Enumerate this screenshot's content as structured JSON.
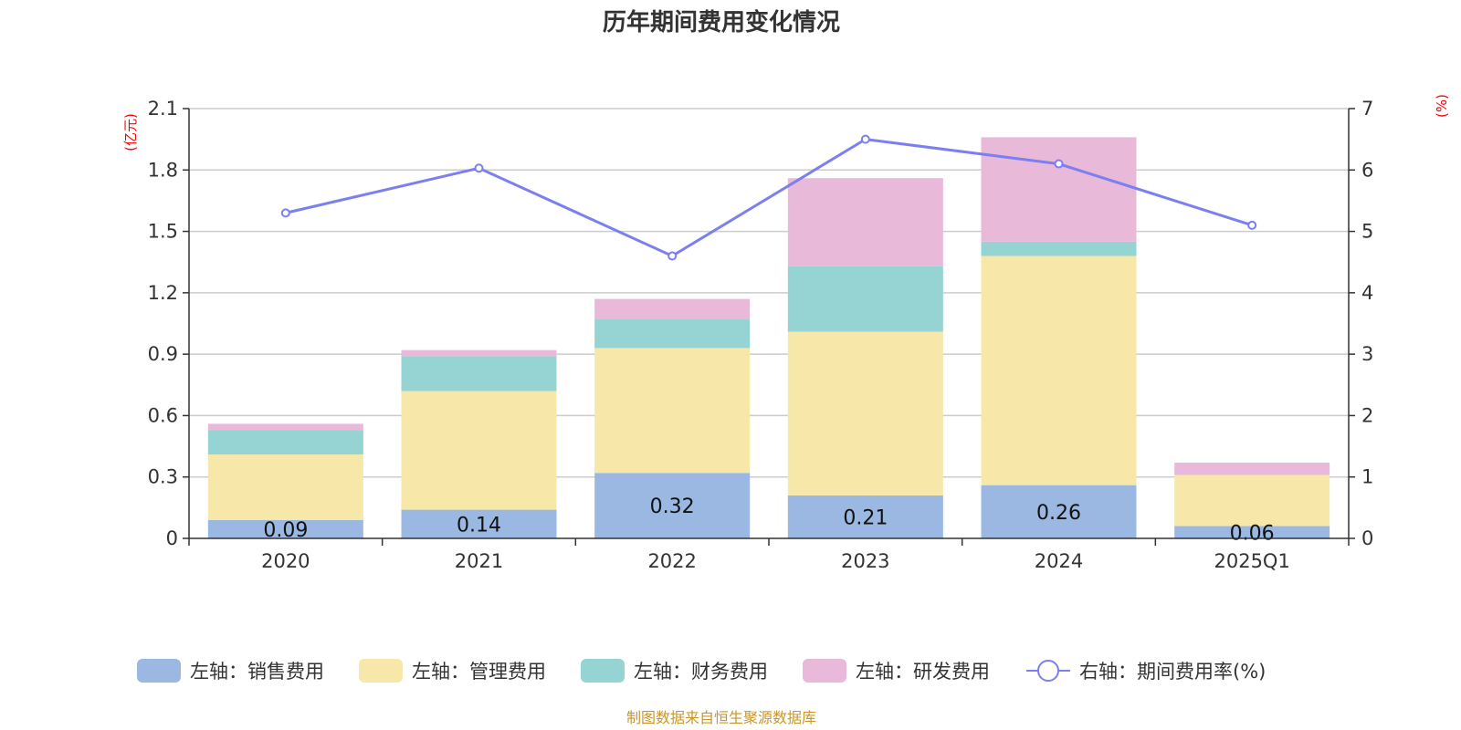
{
  "chart_data": {
    "type": "bar",
    "stacked": true,
    "title": "历年期间费用变化情况",
    "categories": [
      "2020",
      "2021",
      "2022",
      "2023",
      "2024",
      "2025Q1"
    ],
    "left_axis": {
      "unit": "(亿元)",
      "ylim": [
        0,
        2.1
      ],
      "ticks": [
        "0",
        "0.3",
        "0.6",
        "0.9",
        "1.2",
        "1.5",
        "1.8",
        "2.1"
      ]
    },
    "right_axis": {
      "unit": "(%)",
      "ylim": [
        0,
        7
      ],
      "ticks": [
        "0",
        "1",
        "2",
        "3",
        "4",
        "5",
        "6",
        "7"
      ]
    },
    "series": [
      {
        "name": "左轴：销售费用",
        "axis": "left",
        "kind": "bar",
        "color": "#9bb8e2",
        "values": [
          0.09,
          0.14,
          0.32,
          0.21,
          0.26,
          0.06
        ],
        "labels": [
          "0.09",
          "0.14",
          "0.32",
          "0.21",
          "0.26",
          "0.06"
        ]
      },
      {
        "name": "左轴：管理费用",
        "axis": "left",
        "kind": "bar",
        "color": "#f7e7a9",
        "values": [
          0.32,
          0.58,
          0.61,
          0.8,
          1.12,
          0.25
        ]
      },
      {
        "name": "左轴：财务费用",
        "axis": "left",
        "kind": "bar",
        "color": "#96d4d4",
        "values": [
          0.12,
          0.17,
          0.14,
          0.32,
          0.07,
          0.0
        ]
      },
      {
        "name": "左轴：研发费用",
        "axis": "left",
        "kind": "bar",
        "color": "#e8b9d9",
        "values": [
          0.03,
          0.03,
          0.1,
          0.43,
          0.51,
          0.06
        ]
      },
      {
        "name": "右轴：期间费用率(%)",
        "axis": "right",
        "kind": "line",
        "color": "#7b7ff0",
        "values": [
          5.3,
          6.03,
          4.6,
          6.5,
          6.1,
          5.1
        ]
      }
    ],
    "grid": true,
    "legend_position": "bottom"
  },
  "source": "制图数据来自恒生聚源数据库"
}
